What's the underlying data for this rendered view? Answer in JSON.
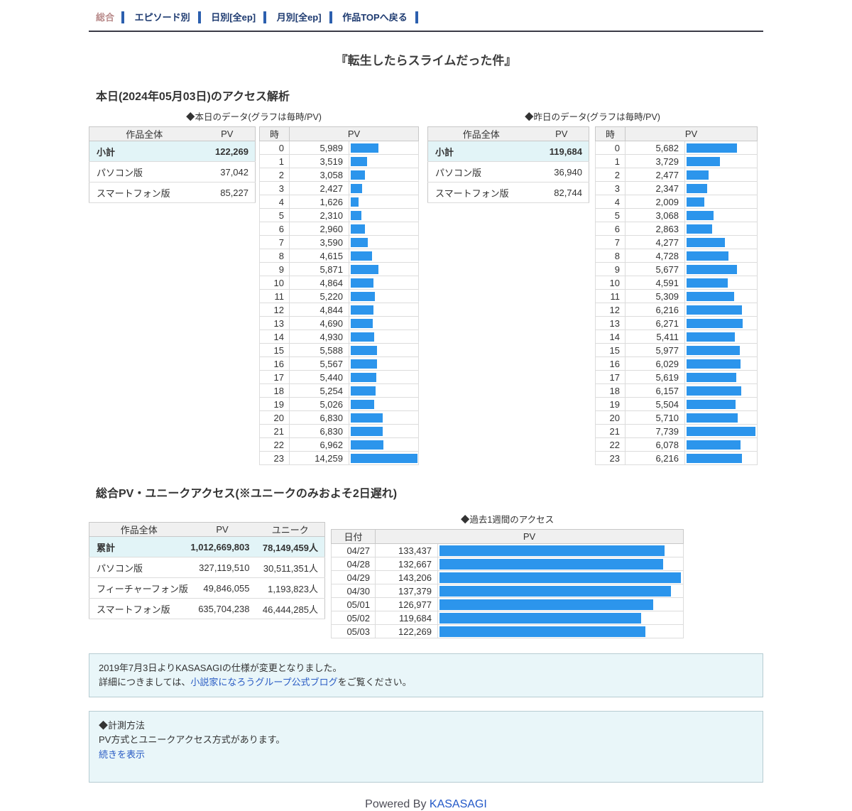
{
  "nav": {
    "current": "総合",
    "items": [
      {
        "label": "エピソード別"
      },
      {
        "label": "日別[全ep]"
      },
      {
        "label": "月別[全ep]"
      },
      {
        "label": "作品TOPへ戻る"
      }
    ]
  },
  "title": "『転生したらスライムだった件』",
  "today": {
    "heading": "本日(2024年05月03日)のアクセス解析",
    "summary": {
      "headers": [
        "作品全体",
        "PV"
      ],
      "rows": [
        [
          "小計",
          "122,269"
        ],
        [
          "パソコン版",
          "37,042"
        ],
        [
          "スマートフォン版",
          "85,227"
        ]
      ]
    }
  },
  "yesterday": {
    "summary": {
      "headers": [
        "作品全体",
        "PV"
      ],
      "rows": [
        [
          "小計",
          "119,684"
        ],
        [
          "パソコン版",
          "36,940"
        ],
        [
          "スマートフォン版",
          "82,744"
        ]
      ]
    }
  },
  "hourly_headers": [
    "時",
    "PV"
  ],
  "totals": {
    "heading": "総合PV・ユニークアクセス(※ユニークのみおよそ2日遅れ)",
    "headers": [
      "作品全体",
      "PV",
      "ユニーク"
    ],
    "rows": [
      [
        "累計",
        "1,012,669,803",
        "78,149,459人"
      ],
      [
        "パソコン版",
        "327,119,510",
        "30,511,351人"
      ],
      [
        "フィーチャーフォン版",
        "49,846,055",
        "1,193,823人"
      ],
      [
        "スマートフォン版",
        "635,704,238",
        "46,444,285人"
      ]
    ]
  },
  "week_headers": [
    "日付",
    "PV"
  ],
  "chart_data": [
    {
      "type": "bar",
      "title": "◆本日のデータ(グラフは毎時/PV)",
      "xlabel": "時",
      "ylabel": "PV",
      "categories": [
        0,
        1,
        2,
        3,
        4,
        5,
        6,
        7,
        8,
        9,
        10,
        11,
        12,
        13,
        14,
        15,
        16,
        17,
        18,
        19,
        20,
        21,
        22,
        23
      ],
      "values": [
        5989,
        3519,
        3058,
        2427,
        1626,
        2310,
        2960,
        3590,
        4615,
        5871,
        4864,
        5220,
        4844,
        4690,
        4930,
        5588,
        5567,
        5440,
        5254,
        5026,
        6830,
        6830,
        6962,
        14259
      ]
    },
    {
      "type": "bar",
      "title": "◆昨日のデータ(グラフは毎時/PV)",
      "xlabel": "時",
      "ylabel": "PV",
      "categories": [
        0,
        1,
        2,
        3,
        4,
        5,
        6,
        7,
        8,
        9,
        10,
        11,
        12,
        13,
        14,
        15,
        16,
        17,
        18,
        19,
        20,
        21,
        22,
        23
      ],
      "values": [
        5682,
        3729,
        2477,
        2347,
        2009,
        3068,
        2863,
        4277,
        4728,
        5677,
        4591,
        5309,
        6216,
        6271,
        5411,
        5977,
        6029,
        5619,
        6157,
        5504,
        5710,
        7739,
        6078,
        6216
      ]
    },
    {
      "type": "bar",
      "title": "◆過去1週間のアクセス",
      "xlabel": "日付",
      "ylabel": "PV",
      "categories": [
        "04/27",
        "04/28",
        "04/29",
        "04/30",
        "05/01",
        "05/02",
        "05/03"
      ],
      "values": [
        133437,
        132667,
        143206,
        137379,
        126977,
        119684,
        122269
      ]
    }
  ],
  "notice": {
    "line1": "2019年7月3日よりKASASAGIの仕様が変更となりました。",
    "line2_before": "詳細につきましては、",
    "line2_link": "小説家になろうグループ公式ブログ",
    "line2_after": "をご覧ください。"
  },
  "method": {
    "heading": "◆計測方法",
    "body": "PV方式とユニークアクセス方式があります。",
    "more_label": "続きを表示"
  },
  "footer": {
    "text": "Powered By ",
    "link_label": "KASASAGI"
  },
  "colors": {
    "bar": "#2c95ec",
    "link": "#2a5cc4",
    "nav_link": "#1d3a70",
    "nav_current": "#b98b8b",
    "highlight_row": "#e2f4f7",
    "header_bg": "#f0f0f0"
  }
}
